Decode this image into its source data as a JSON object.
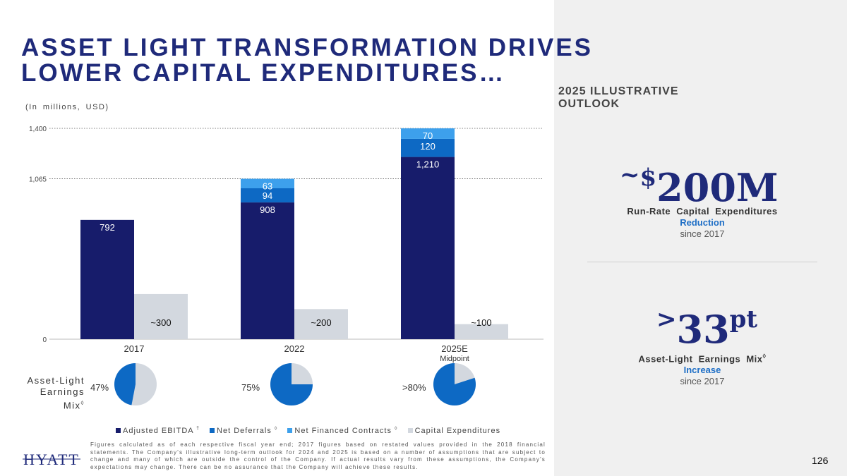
{
  "title_lines": [
    "ASSET LIGHT TRANSFORMATION DRIVES",
    "LOWER CAPITAL EXPENDITURES…"
  ],
  "units": "(In millions, USD)",
  "outlook": {
    "heading": "2025 ILLUSTRATIVE OUTLOOK",
    "metric1": {
      "prefix": "~",
      "currency": "$",
      "value": "200M",
      "label": "Run-Rate Capital Expenditures",
      "accent": "Reduction",
      "since": "since 2017"
    },
    "metric2": {
      "prefix": ">",
      "value": "33",
      "unit": "pt",
      "label": "Asset-Light Earnings Mix",
      "label_mark": "◊",
      "accent": "Increase",
      "since": "since 2017"
    }
  },
  "asset_light": {
    "label_line1": "Asset-Light",
    "label_line2": "Earnings Mix",
    "mark": "◊"
  },
  "pies": [
    {
      "label": "47%",
      "value": 47
    },
    {
      "label": "75%",
      "value": 75
    },
    {
      "label": ">80%",
      "value": 80
    }
  ],
  "colors": {
    "navy": "#171c6b",
    "mid_blue": "#0d69c4",
    "light_blue": "#3da0ec",
    "gray": "#d3d8df",
    "title": "#1f2a7a"
  },
  "chart_data": {
    "type": "bar",
    "categories": [
      "2017",
      "2022",
      "2025E"
    ],
    "category_notes": [
      "",
      "",
      "Midpoint"
    ],
    "stacked_series": [
      {
        "name": "Adjusted EBITDA",
        "mark": "†",
        "values": [
          792,
          908,
          1210
        ],
        "labels": [
          "792",
          "908",
          "1,210"
        ]
      },
      {
        "name": "Net Deferrals",
        "mark": "◊",
        "values": [
          0,
          94,
          120
        ],
        "labels": [
          "",
          "94",
          "120"
        ]
      },
      {
        "name": "Net Financed Contracts",
        "mark": "◊",
        "values": [
          0,
          63,
          70
        ],
        "labels": [
          "",
          "63",
          "70"
        ]
      }
    ],
    "side_series": {
      "name": "Capital Expenditures",
      "mark": "",
      "values": [
        300,
        200,
        100
      ],
      "labels": [
        "~300",
        "~200",
        "~100"
      ]
    },
    "yticks": [
      0,
      1065,
      1400
    ],
    "ytick_labels": [
      "0",
      "1,065",
      "1,400"
    ],
    "ylim": [
      0,
      1400
    ]
  },
  "footnote": "Figures calculated as of each respective fiscal year end; 2017 figures based on restated values provided in the 2018 financial statements. The Company's illustrative long-term outlook for 2024 and 2025 is based on a number of assumptions that are subject to change and many of which are outside the control of the Company. If actual results vary from these assumptions, the Company's expectations may change. There can be no assurance that the Company will achieve these results.",
  "logo_text": "HYATT",
  "page_number": "126"
}
